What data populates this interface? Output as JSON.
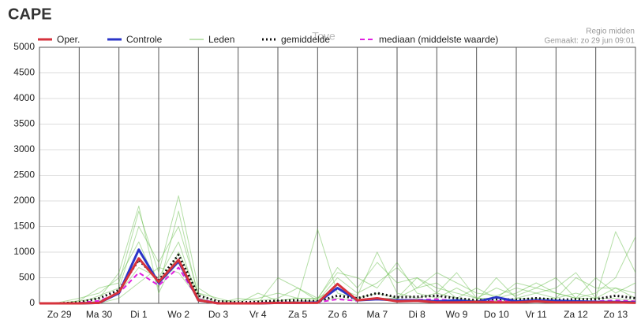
{
  "chart_data": {
    "type": "line",
    "title": "CAPE",
    "subtitle": "Regio midden",
    "annotation": "Gemaakt: zo 29 jun 09:01",
    "watermark": "Tove",
    "x": [
      0,
      0.5,
      1,
      1.5,
      2,
      2.5,
      3,
      3.5,
      4,
      4.5,
      5,
      5.5,
      6,
      6.5,
      7,
      7.5,
      8,
      8.5,
      9,
      9.5,
      10,
      10.5,
      11,
      11.5,
      12,
      12.5,
      13,
      13.5,
      14,
      14.5,
      15
    ],
    "xlim": [
      0,
      15
    ],
    "xticks": [
      {
        "value": 0.5,
        "label": "Zo 29"
      },
      {
        "value": 1.5,
        "label": "Ma 30"
      },
      {
        "value": 2.5,
        "label": "Di 1"
      },
      {
        "value": 3.5,
        "label": "Wo 2"
      },
      {
        "value": 4.5,
        "label": "Do 3"
      },
      {
        "value": 5.5,
        "label": "Vr 4"
      },
      {
        "value": 6.5,
        "label": "Za 5"
      },
      {
        "value": 7.5,
        "label": "Zo 6"
      },
      {
        "value": 8.5,
        "label": "Ma 7"
      },
      {
        "value": 9.5,
        "label": "Di 8"
      },
      {
        "value": 10.5,
        "label": "Wo 9"
      },
      {
        "value": 11.5,
        "label": "Do 10"
      },
      {
        "value": 12.5,
        "label": "Vr 11"
      },
      {
        "value": 13.5,
        "label": "Za 12"
      },
      {
        "value": 14.5,
        "label": "Zo 13"
      }
    ],
    "ylim": [
      0,
      5000
    ],
    "yticks": [
      0,
      500,
      1000,
      1500,
      2000,
      2500,
      3000,
      3500,
      4000,
      4500,
      5000
    ],
    "grid": true,
    "series": [
      {
        "name": "Leden",
        "color": "#5cb83c",
        "style": "thin",
        "members": [
          [
            0,
            0,
            50,
            300,
            400,
            1800,
            600,
            2100,
            300,
            50,
            50,
            100,
            200,
            100,
            80,
            700,
            300,
            800,
            400,
            500,
            300,
            200,
            100,
            300,
            150,
            300,
            200,
            100,
            200,
            500,
            1300
          ],
          [
            0,
            0,
            0,
            150,
            300,
            1500,
            800,
            1500,
            200,
            0,
            100,
            50,
            100,
            300,
            50,
            500,
            200,
            400,
            700,
            300,
            600,
            400,
            200,
            150,
            300,
            200,
            100,
            500,
            300,
            300,
            200
          ],
          [
            0,
            20,
            100,
            200,
            500,
            1200,
            300,
            1800,
            100,
            0,
            0,
            200,
            50,
            100,
            1450,
            200,
            100,
            200,
            100,
            300,
            400,
            100,
            300,
            100,
            200,
            400,
            200,
            100,
            500,
            200,
            400
          ],
          [
            0,
            0,
            0,
            50,
            200,
            700,
            500,
            1200,
            50,
            0,
            0,
            0,
            500,
            300,
            100,
            300,
            150,
            1000,
            200,
            100,
            200,
            100,
            50,
            500,
            100,
            200,
            300,
            600,
            100,
            1400,
            600
          ],
          [
            0,
            0,
            50,
            100,
            600,
            1900,
            200,
            1000,
            200,
            100,
            0,
            0,
            50,
            100,
            100,
            600,
            500,
            300,
            800,
            200,
            100,
            300,
            100,
            50,
            100,
            100,
            100,
            200,
            100,
            300,
            100
          ],
          [
            0,
            0,
            0,
            0,
            100,
            400,
            700,
            600,
            100,
            0,
            0,
            0,
            0,
            50,
            50,
            100,
            50,
            100,
            100,
            500,
            200,
            600,
            100,
            100,
            400,
            300,
            500,
            100,
            100,
            100,
            50
          ]
        ]
      },
      {
        "name": "gemiddelde",
        "color": "#111111",
        "style": "dotted",
        "values": [
          0,
          0,
          20,
          100,
          260,
          850,
          450,
          950,
          150,
          40,
          20,
          30,
          50,
          60,
          40,
          150,
          100,
          200,
          120,
          130,
          150,
          100,
          60,
          80,
          70,
          100,
          70,
          80,
          80,
          150,
          100
        ]
      },
      {
        "name": "mediaan (middelste waarde)",
        "color": "#e020e0",
        "style": "dashed",
        "values": [
          0,
          0,
          10,
          50,
          200,
          600,
          350,
          700,
          80,
          10,
          10,
          10,
          20,
          20,
          20,
          80,
          50,
          100,
          60,
          70,
          80,
          50,
          30,
          50,
          40,
          60,
          40,
          40,
          40,
          60,
          40
        ]
      },
      {
        "name": "Controle",
        "color": "#2b35c8",
        "style": "thick",
        "values": [
          0,
          0,
          0,
          10,
          200,
          1050,
          400,
          820,
          60,
          0,
          0,
          0,
          10,
          10,
          20,
          300,
          60,
          80,
          60,
          60,
          40,
          60,
          30,
          120,
          40,
          60,
          50,
          40,
          30,
          30,
          20
        ]
      },
      {
        "name": "Oper.",
        "color": "#d6323c",
        "style": "thick",
        "values": [
          0,
          0,
          0,
          10,
          220,
          880,
          420,
          850,
          60,
          0,
          0,
          0,
          10,
          10,
          10,
          380,
          60,
          100,
          40,
          50,
          20,
          20,
          30,
          20,
          20,
          40,
          20,
          20,
          20,
          20,
          10
        ]
      }
    ],
    "legend_order": [
      4,
      3,
      0,
      1,
      2
    ]
  }
}
